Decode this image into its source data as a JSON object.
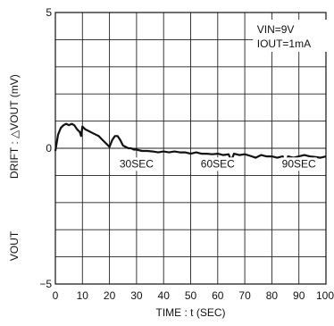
{
  "chart_data": {
    "type": "line",
    "xlabel": "TIME : t  (SEC)",
    "ylabel_main": "DRIFT : △VOUT  (mV)",
    "ylabel_sub": "VOUT",
    "xlim": [
      0,
      100
    ],
    "ylim": [
      -5,
      5
    ],
    "x_ticks": [
      "0",
      "10",
      "20",
      "30",
      "40",
      "50",
      "60",
      "70",
      "80",
      "90",
      "100"
    ],
    "y_ticks": [
      "5",
      "0",
      "−5"
    ],
    "grid": true,
    "conditions": [
      "VIN=9V",
      "IOUT=1mA"
    ],
    "annotations": [
      {
        "text": "30SEC",
        "x": 30,
        "y": -0.7
      },
      {
        "text": "60SEC",
        "x": 60,
        "y": -0.7
      },
      {
        "text": "90SEC",
        "x": 90,
        "y": -0.7
      }
    ],
    "series": [
      {
        "x": [
          0,
          0.5,
          1,
          2,
          3,
          4,
          5,
          6,
          7,
          8,
          9,
          9.5,
          10,
          10.5,
          11,
          12,
          13,
          14,
          15,
          16,
          17,
          18,
          19,
          20,
          21,
          22,
          23,
          24,
          25,
          26,
          27,
          28,
          29,
          30,
          32,
          34,
          36,
          38,
          40,
          42,
          44,
          46,
          48,
          50,
          52,
          54,
          56,
          58,
          60,
          62,
          64,
          65,
          66,
          68,
          70,
          72,
          74,
          76,
          78,
          80,
          82,
          84,
          85,
          86,
          88,
          90,
          92,
          94,
          96,
          98,
          100
        ],
        "y": [
          -0.1,
          0.2,
          0.5,
          0.75,
          0.85,
          0.9,
          0.85,
          0.9,
          0.85,
          0.7,
          0.6,
          0.45,
          0.8,
          0.75,
          0.7,
          0.65,
          0.6,
          0.55,
          0.5,
          0.45,
          0.35,
          0.25,
          0.15,
          0.05,
          0.3,
          0.45,
          0.45,
          0.3,
          0.1,
          0.05,
          0.0,
          0.0,
          -0.05,
          -0.05,
          -0.1,
          -0.1,
          -0.12,
          -0.15,
          -0.12,
          -0.15,
          -0.12,
          -0.15,
          -0.15,
          -0.2,
          -0.15,
          -0.2,
          -0.2,
          -0.22,
          -0.2,
          -0.25,
          -0.22,
          -0.45,
          -0.2,
          -0.25,
          -0.22,
          -0.28,
          -0.35,
          -0.25,
          -0.3,
          -0.3,
          -0.35,
          -0.3,
          -0.55,
          -0.3,
          -0.35,
          -0.3,
          -0.25,
          -0.3,
          -0.32,
          -0.35,
          -0.3
        ]
      }
    ]
  }
}
